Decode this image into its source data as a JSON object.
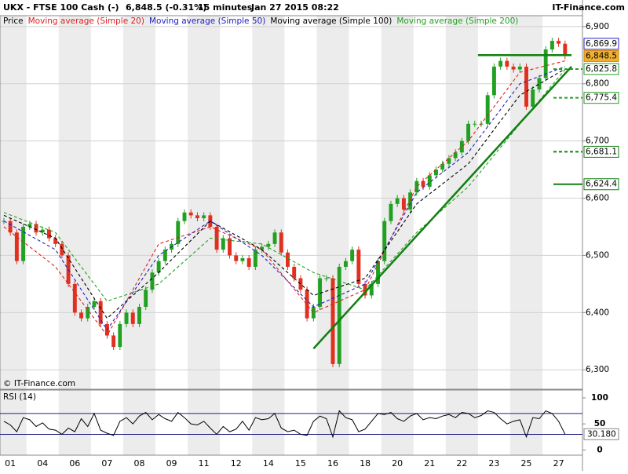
{
  "chart_data": {
    "type": "candlestick",
    "header": {
      "symbol": "UKX - FTSE 100 Cash (-)",
      "quote": "6,848.5 (-0.31%)",
      "timeframe": "15 minutes",
      "timestamp": "Jan 27 2015 08:22",
      "brand": "IT-Finance.com"
    },
    "copyright": "© IT-Finance.com",
    "x": [
      0,
      1,
      2,
      3,
      4,
      5,
      6,
      7,
      8,
      9,
      10,
      11,
      12,
      13,
      14,
      15,
      16,
      17,
      18,
      19,
      20,
      21,
      22,
      23,
      24,
      25,
      26,
      27,
      28,
      29,
      30,
      31,
      32,
      33,
      34,
      35,
      36,
      37,
      38,
      39,
      40,
      41,
      42,
      43,
      44,
      45,
      46,
      47,
      48,
      49,
      50,
      51,
      52,
      53,
      54,
      55,
      56,
      57,
      58,
      59,
      60,
      61,
      62,
      63,
      64,
      65,
      66,
      67,
      68,
      69,
      70,
      71,
      72,
      73,
      74,
      75,
      76,
      77,
      78,
      79,
      80,
      81,
      82,
      83,
      84,
      85,
      86,
      87
    ],
    "xlim": [
      -0.6,
      89.7
    ],
    "xticks": [
      {
        "value": 1,
        "label": "01"
      },
      {
        "value": 6,
        "label": "04"
      },
      {
        "value": 11,
        "label": "06"
      },
      {
        "value": 16,
        "label": "07"
      },
      {
        "value": 21,
        "label": "08"
      },
      {
        "value": 26,
        "label": "09"
      },
      {
        "value": 31,
        "label": "11"
      },
      {
        "value": 36,
        "label": "12"
      },
      {
        "value": 41,
        "label": "14"
      },
      {
        "value": 46,
        "label": "15"
      },
      {
        "value": 51,
        "label": "16"
      },
      {
        "value": 56,
        "label": "18"
      },
      {
        "value": 61,
        "label": "20"
      },
      {
        "value": 66,
        "label": "21"
      },
      {
        "value": 71,
        "label": "22"
      },
      {
        "value": 76,
        "label": "23"
      },
      {
        "value": 81,
        "label": "25"
      },
      {
        "value": 86,
        "label": "27"
      }
    ],
    "ylim": [
      6266,
      6919
    ],
    "yticks": [
      {
        "value": 6300,
        "label": "6,300"
      },
      {
        "value": 6400,
        "label": "6,400"
      },
      {
        "value": 6500,
        "label": "6,500"
      },
      {
        "value": 6600,
        "label": "6,600"
      },
      {
        "value": 6700,
        "label": "6,700"
      },
      {
        "value": 6800,
        "label": "6,800"
      },
      {
        "value": 6900,
        "label": "6,900"
      }
    ],
    "up_color": "#22a022",
    "down_color": "#e03020",
    "series": [
      {
        "name": "Price",
        "color": "#000000",
        "values": [
          6560,
          6540,
          6490,
          6550,
          6555,
          6540,
          6545,
          6530,
          6520,
          6500,
          6450,
          6400,
          6390,
          6410,
          6420,
          6380,
          6360,
          6340,
          6380,
          6400,
          6380,
          6410,
          6440,
          6470,
          6490,
          6510,
          6520,
          6560,
          6575,
          6570,
          6565,
          6570,
          6550,
          6510,
          6530,
          6500,
          6490,
          6495,
          6480,
          6510,
          6515,
          6520,
          6540,
          6505,
          6480,
          6460,
          6440,
          6390,
          6410,
          6460,
          6460,
          6310,
          6480,
          6490,
          6510,
          6450,
          6430,
          6450,
          6490,
          6560,
          6590,
          6600,
          6580,
          6610,
          6630,
          6620,
          6640,
          6650,
          6660,
          6670,
          6680,
          6700,
          6730,
          6730,
          6730,
          6780,
          6830,
          6840,
          6830,
          6825,
          6830,
          6760,
          6790,
          6810,
          6860,
          6875,
          6870,
          6848.5
        ]
      },
      {
        "name": "Moving average (Simple 20)",
        "color": "#e02020",
        "x": [
          0,
          8,
          16,
          24,
          32,
          40,
          48,
          56,
          64,
          72,
          80,
          87
        ],
        "values": [
          6550,
          6480,
          6360,
          6520,
          6550,
          6510,
          6400,
          6440,
          6620,
          6700,
          6820,
          6840
        ]
      },
      {
        "name": "Moving average (Simple 50)",
        "color": "#2020c0",
        "x": [
          0,
          8,
          16,
          24,
          32,
          40,
          48,
          56,
          64,
          72,
          80,
          87
        ],
        "values": [
          6560,
          6510,
          6370,
          6500,
          6560,
          6500,
          6410,
          6450,
          6610,
          6680,
          6800,
          6830
        ]
      },
      {
        "name": "Moving average (Simple 100)",
        "color": "#000000",
        "x": [
          0,
          8,
          16,
          24,
          32,
          40,
          48,
          56,
          64,
          72,
          80,
          87
        ],
        "values": [
          6570,
          6530,
          6390,
          6470,
          6560,
          6510,
          6430,
          6460,
          6590,
          6660,
          6780,
          6826
        ]
      },
      {
        "name": "Moving average (Simple 200)",
        "color": "#20a020",
        "x": [
          0,
          8,
          16,
          24,
          32,
          40,
          48,
          56,
          64,
          72,
          80,
          87
        ],
        "values": [
          6575,
          6540,
          6420,
          6450,
          6530,
          6520,
          6470,
          6440,
          6540,
          6620,
          6730,
          6825
        ]
      }
    ],
    "levels": [
      {
        "value": 6869.9,
        "label": "6,869.9",
        "color": "#2020c0",
        "fill": "#ffffff",
        "style": "none"
      },
      {
        "value": 6848.5,
        "label": "6,848.5",
        "color": "#d08000",
        "fill": "#f0b030",
        "style": "none"
      },
      {
        "value": 6825.8,
        "label": "6,825.8",
        "color": "#20a020",
        "fill": "#ffffff",
        "style": "dashed"
      },
      {
        "value": 6775.4,
        "label": "6,775.4",
        "color": "#20a020",
        "fill": "#ffffff",
        "style": "dashed"
      },
      {
        "value": 6681.1,
        "label": "6,681.1",
        "color": "#108010",
        "fill": "#ffffff",
        "style": "dashed"
      },
      {
        "value": 6624.4,
        "label": "6,624.4",
        "color": "#108010",
        "fill": "#ffffff",
        "style": "solid"
      }
    ],
    "trendlines": [
      {
        "color": "#108010",
        "x": [
          48,
          88
        ],
        "y": [
          6337,
          6830
        ]
      },
      {
        "color": "#108010",
        "x": [
          73.5,
          88
        ],
        "y": [
          6850,
          6850
        ]
      }
    ],
    "rsi": {
      "name": "RSI (14)",
      "color": "#000000",
      "values": [
        55,
        48,
        35,
        62,
        58,
        45,
        52,
        40,
        38,
        30,
        42,
        35,
        60,
        45,
        70,
        38,
        32,
        28,
        55,
        62,
        50,
        65,
        72,
        58,
        68,
        60,
        55,
        72,
        62,
        50,
        48,
        55,
        42,
        30,
        45,
        35,
        40,
        55,
        38,
        62,
        58,
        60,
        70,
        42,
        35,
        38,
        30,
        28,
        55,
        65,
        60,
        25,
        75,
        62,
        58,
        35,
        40,
        55,
        70,
        68,
        72,
        60,
        55,
        65,
        70,
        58,
        62,
        60,
        65,
        68,
        62,
        72,
        70,
        62,
        66,
        75,
        72,
        60,
        50,
        55,
        58,
        25,
        62,
        60,
        75,
        70,
        55,
        30.18
      ],
      "ylim": [
        -10,
        115
      ],
      "yticks": [
        0,
        50,
        100
      ],
      "bands": [
        70,
        30
      ],
      "band_color": "#202080",
      "last": {
        "value": 30.18,
        "label": "30.180"
      }
    }
  }
}
